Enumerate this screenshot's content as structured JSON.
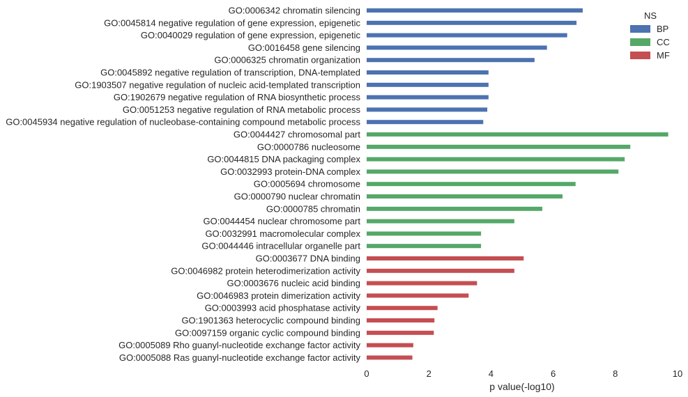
{
  "chart_data": {
    "type": "bar",
    "orientation": "horizontal",
    "xlabel": "p value(-log10)",
    "ylabel": "",
    "title": "",
    "xlim": [
      0,
      10
    ],
    "xticks": [
      "0",
      "2",
      "4",
      "6",
      "8",
      "10"
    ],
    "grid": false,
    "legend": {
      "title": "NS",
      "placement": "top-right"
    },
    "series": [
      {
        "name": "BP",
        "color": "#4c72b0",
        "categories": [
          "GO:0006342 chromatin silencing",
          "GO:0045814 negative regulation of gene expression, epigenetic",
          "GO:0040029 regulation of gene expression, epigenetic",
          "GO:0016458 gene silencing",
          "GO:0006325 chromatin organization",
          "GO:0045892 negative regulation of transcription, DNA-templated",
          "GO:1903507 negative regulation of nucleic acid-templated transcription",
          "GO:1902679 negative regulation of RNA biosynthetic process",
          "GO:0051253 negative regulation of RNA metabolic process",
          "GO:0045934 negative regulation of nucleobase-containing compound metabolic process"
        ],
        "values": [
          6.95,
          6.75,
          6.45,
          5.8,
          5.4,
          3.92,
          3.92,
          3.92,
          3.88,
          3.75
        ]
      },
      {
        "name": "CC",
        "color": "#55a868",
        "categories": [
          "GO:0044427 chromosomal part",
          "GO:0000786 nucleosome",
          "GO:0044815 DNA packaging complex",
          "GO:0032993 protein-DNA complex",
          "GO:0005694 chromosome",
          "GO:0000790 nuclear chromatin",
          "GO:0000785 chromatin",
          "GO:0044454 nuclear chromosome part",
          "GO:0032991 macromolecular complex",
          "GO:0044446 intracellular organelle part"
        ],
        "values": [
          9.7,
          8.48,
          8.3,
          8.1,
          6.72,
          6.3,
          5.65,
          4.75,
          3.68,
          3.68
        ]
      },
      {
        "name": "MF",
        "color": "#c44e52",
        "categories": [
          "GO:0003677 DNA binding",
          "GO:0046982 protein heterodimerization activity",
          "GO:0003676 nucleic acid binding",
          "GO:0046983 protein dimerization activity",
          "GO:0003993 acid phosphatase activity",
          "GO:1901363 heterocyclic compound binding",
          "GO:0097159 organic cyclic compound binding",
          "GO:0005089 Rho guanyl-nucleotide exchange factor activity",
          "GO:0005088 Ras guanyl-nucleotide exchange factor activity"
        ],
        "values": [
          5.05,
          4.75,
          3.55,
          3.28,
          2.28,
          2.18,
          2.16,
          1.5,
          1.47
        ]
      }
    ]
  }
}
